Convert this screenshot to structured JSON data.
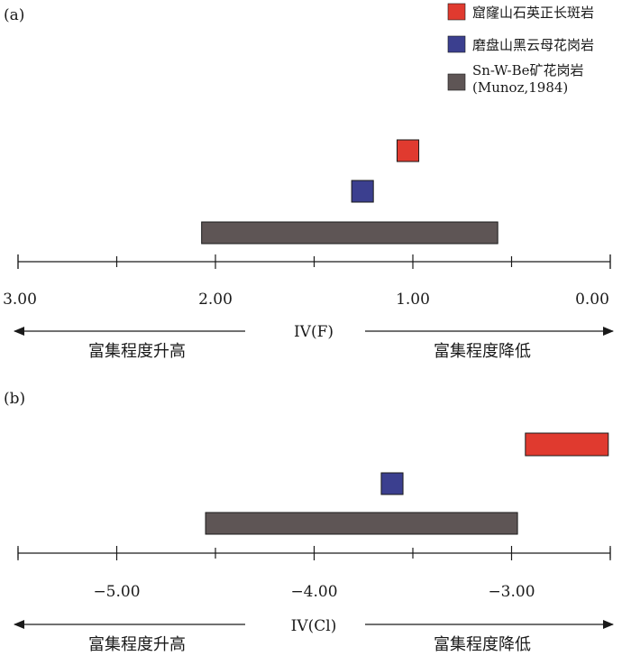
{
  "chart_data": [
    {
      "type": "range-bar",
      "panel_label": "(a)",
      "axis_title": "IV(F)",
      "axis": {
        "min": 0.0,
        "max": 3.0,
        "reversed": true,
        "major_ticks": [
          3.0,
          2.0,
          1.0,
          0.0
        ],
        "major_tick_labels": [
          "3.00",
          "2.00",
          "1.00",
          "0.00"
        ],
        "minor_step": 0.5
      },
      "arrows": {
        "left": "富集程度升高",
        "right": "富集程度降低"
      },
      "series": [
        {
          "name": "窟窿山石英正长斑岩",
          "color": "#e03a2f",
          "range": [
            0.97,
            1.08
          ]
        },
        {
          "name": "磨盘山黑云母花岗岩",
          "color": "#3b3f8f",
          "range": [
            1.2,
            1.31
          ]
        },
        {
          "name": "Sn-W-Be矿花岗岩",
          "name_line2": "(Munoz,1984)",
          "color": "#5e5555",
          "range": [
            0.57,
            2.07
          ]
        }
      ]
    },
    {
      "type": "range-bar",
      "panel_label": "(b)",
      "axis_title": "IV(Cl)",
      "axis": {
        "min": -5.5,
        "max": -2.5,
        "reversed": false,
        "major_ticks": [
          -5.0,
          -4.0,
          -3.0
        ],
        "major_tick_labels": [
          "−5.00",
          "−4.00",
          "−3.00"
        ],
        "minor_step": 0.5
      },
      "arrows": {
        "left": "富集程度升高",
        "right": "富集程度降低"
      },
      "series": [
        {
          "name": "窟窿山石英正长斑岩",
          "color": "#e03a2f",
          "range": [
            -2.93,
            -2.51
          ]
        },
        {
          "name": "磨盘山黑云母花岗岩",
          "color": "#3b3f8f",
          "range": [
            -3.66,
            -3.55
          ]
        },
        {
          "name": "Sn-W-Be矿花岗岩",
          "color": "#5e5555",
          "range": [
            -4.55,
            -2.97
          ]
        }
      ]
    }
  ]
}
